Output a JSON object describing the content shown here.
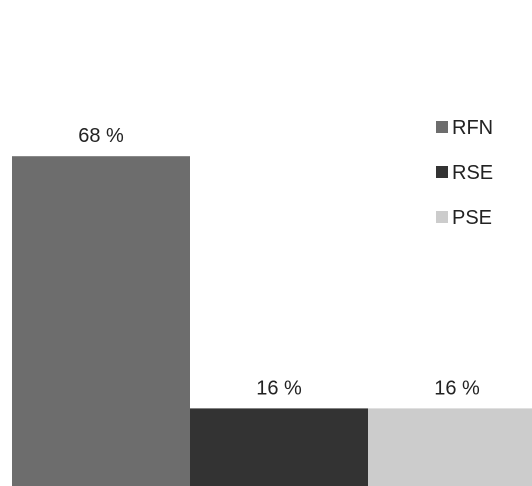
{
  "chart_data": {
    "type": "bar",
    "categories": [
      "RFN",
      "RSE",
      "PSE"
    ],
    "values": [
      68,
      16,
      16
    ],
    "value_labels": [
      "68 %",
      "16 %",
      "16 %"
    ],
    "ylim": [
      0,
      100
    ],
    "grid": false,
    "legend_position": "right",
    "colors": [
      "#6d6d6d",
      "#333333",
      "#cccccc"
    ],
    "series": [
      {
        "name": "RFN",
        "color": "#6d6d6d"
      },
      {
        "name": "RSE",
        "color": "#333333"
      },
      {
        "name": "PSE",
        "color": "#cccccc"
      }
    ]
  }
}
